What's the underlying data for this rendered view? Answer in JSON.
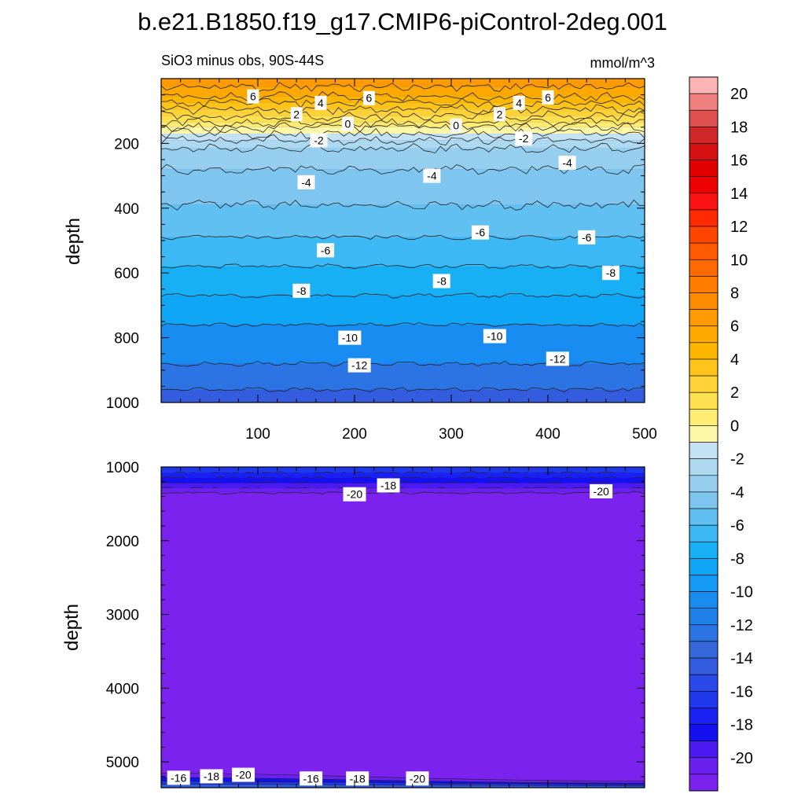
{
  "title": "b.e21.B1850.f19_g17.CMIP6-piControl-2deg.001",
  "chart_data": {
    "type": "contour",
    "subtitle": "SiO3 minus obs, 90S-44S",
    "units": "mmol/m^3",
    "ylabel": "depth",
    "upper_panel": {
      "xlim": [
        0,
        500
      ],
      "ylim": [
        1000,
        0
      ],
      "xticks": [
        100,
        200,
        300,
        400,
        500
      ],
      "yticks": [
        200,
        400,
        600,
        800,
        1000
      ],
      "depth_bands": [
        {
          "depth_top": 0,
          "value": 7
        },
        {
          "depth_top": 25,
          "value": 6
        },
        {
          "depth_top": 55,
          "value": 5
        },
        {
          "depth_top": 75,
          "value": 4
        },
        {
          "depth_top": 95,
          "value": 3
        },
        {
          "depth_top": 115,
          "value": 2
        },
        {
          "depth_top": 135,
          "value": 1
        },
        {
          "depth_top": 150,
          "value": 0
        },
        {
          "depth_top": 170,
          "value": -1
        },
        {
          "depth_top": 190,
          "value": -2
        },
        {
          "depth_top": 215,
          "value": -3
        },
        {
          "depth_top": 280,
          "value": -4
        },
        {
          "depth_top": 390,
          "value": -5
        },
        {
          "depth_top": 490,
          "value": -6
        },
        {
          "depth_top": 580,
          "value": -7
        },
        {
          "depth_top": 670,
          "value": -8
        },
        {
          "depth_top": 760,
          "value": -10
        },
        {
          "depth_top": 880,
          "value": -12
        },
        {
          "depth_top": 960,
          "value": -14
        }
      ],
      "contour_labels": [
        {
          "x": 95,
          "depth": 55,
          "text": "6"
        },
        {
          "x": 165,
          "depth": 75,
          "text": "4"
        },
        {
          "x": 215,
          "depth": 60,
          "text": "6"
        },
        {
          "x": 370,
          "depth": 75,
          "text": "4"
        },
        {
          "x": 400,
          "depth": 58,
          "text": "6"
        },
        {
          "x": 140,
          "depth": 110,
          "text": "2"
        },
        {
          "x": 350,
          "depth": 110,
          "text": "2"
        },
        {
          "x": 193,
          "depth": 140,
          "text": "0"
        },
        {
          "x": 305,
          "depth": 145,
          "text": "0"
        },
        {
          "x": 163,
          "depth": 190,
          "text": "-2"
        },
        {
          "x": 375,
          "depth": 185,
          "text": "-2"
        },
        {
          "x": 150,
          "depth": 320,
          "text": "-4"
        },
        {
          "x": 280,
          "depth": 300,
          "text": "-4"
        },
        {
          "x": 420,
          "depth": 260,
          "text": "-4"
        },
        {
          "x": 170,
          "depth": 530,
          "text": "-6"
        },
        {
          "x": 330,
          "depth": 475,
          "text": "-6"
        },
        {
          "x": 440,
          "depth": 490,
          "text": "-6"
        },
        {
          "x": 145,
          "depth": 655,
          "text": "-8"
        },
        {
          "x": 290,
          "depth": 625,
          "text": "-8"
        },
        {
          "x": 465,
          "depth": 600,
          "text": "-8"
        },
        {
          "x": 195,
          "depth": 800,
          "text": "-10"
        },
        {
          "x": 345,
          "depth": 795,
          "text": "-10"
        },
        {
          "x": 205,
          "depth": 885,
          "text": "-12"
        },
        {
          "x": 410,
          "depth": 865,
          "text": "-12"
        }
      ]
    },
    "lower_panel": {
      "xlim": [
        0,
        500
      ],
      "ylim": [
        1000,
        5350
      ],
      "yticks": [
        1000,
        2000,
        3000,
        4000,
        5000
      ],
      "fill_value": -21,
      "top_bands": [
        {
          "depth_top": 1000,
          "value": -16
        },
        {
          "depth_top": 1080,
          "value": -17
        },
        {
          "depth_top": 1150,
          "value": -18
        },
        {
          "depth_top": 1220,
          "value": -19
        },
        {
          "depth_top": 1290,
          "value": -20
        }
      ],
      "bottom_bands": [
        {
          "depth_top": 5150,
          "value": -20
        },
        {
          "depth_top": 5210,
          "value": -18
        },
        {
          "depth_top": 5260,
          "value": -16
        },
        {
          "depth_top": 5300,
          "value": -14
        }
      ],
      "contour_labels": [
        {
          "x": 235,
          "depth": 1250,
          "text": "-18"
        },
        {
          "x": 200,
          "depth": 1370,
          "text": "-20"
        },
        {
          "x": 455,
          "depth": 1330,
          "text": "-20"
        },
        {
          "x": 18,
          "depth": 5215,
          "text": "-16"
        },
        {
          "x": 52,
          "depth": 5195,
          "text": "-18"
        },
        {
          "x": 85,
          "depth": 5175,
          "text": "-20"
        },
        {
          "x": 155,
          "depth": 5225,
          "text": "-16"
        },
        {
          "x": 203,
          "depth": 5225,
          "text": "-18"
        },
        {
          "x": 265,
          "depth": 5225,
          "text": "-20"
        }
      ]
    },
    "colorbar": {
      "ticks": [
        20,
        18,
        16,
        14,
        12,
        10,
        8,
        6,
        4,
        2,
        0,
        -2,
        -4,
        -6,
        -8,
        -10,
        -12,
        -14,
        -16,
        -18,
        -20
      ],
      "levels_high_to_low": [
        21,
        20,
        19,
        18,
        17,
        16,
        15,
        14,
        13,
        12,
        11,
        10,
        9,
        8,
        7,
        6,
        5,
        4,
        3,
        2,
        1,
        0,
        -1,
        -2,
        -3,
        -4,
        -5,
        -6,
        -7,
        -8,
        -9,
        -10,
        -11,
        -12,
        -13,
        -14,
        -15,
        -16,
        -17,
        -18,
        -19,
        -20,
        -21
      ],
      "colors": [
        "#fcb4b4",
        "#f08080",
        "#e05050",
        "#d02828",
        "#d41010",
        "#e00000",
        "#ee0000",
        "#fa1212",
        "#ff2a00",
        "#ff4400",
        "#ff5a00",
        "#ff6a00",
        "#ff7c00",
        "#ff8c00",
        "#ff9a00",
        "#ffa800",
        "#ffb600",
        "#ffc41a",
        "#ffd238",
        "#ffe050",
        "#ffec72",
        "#fff7a8",
        "#c4e2f4",
        "#acd8f0",
        "#96cef0",
        "#7ec6f0",
        "#60c0f2",
        "#3cb8f4",
        "#18b0f4",
        "#10a6f6",
        "#149af4",
        "#188cf0",
        "#2080ea",
        "#2c74e4",
        "#3668dc",
        "#345cde",
        "#2a48e8",
        "#2038ec",
        "#1a20f2",
        "#1410f0",
        "#4a1af0",
        "#6a20ee",
        "#7c22ee"
      ]
    }
  }
}
